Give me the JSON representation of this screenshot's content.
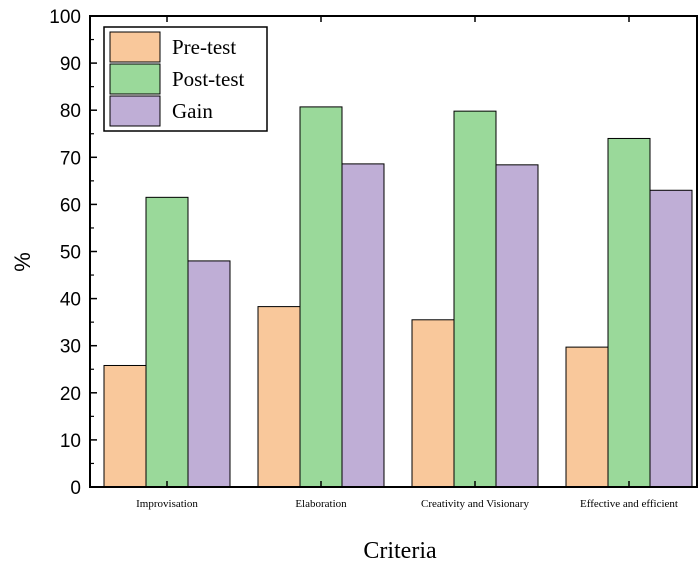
{
  "chart_data": {
    "type": "bar",
    "categories": [
      "Improvisation",
      "Elaboration",
      "Creativity and Visionary",
      "Effective and efficient"
    ],
    "series": [
      {
        "name": "Pre-test",
        "values": [
          25.8,
          38.3,
          35.5,
          29.7
        ],
        "color": "#f9c89b"
      },
      {
        "name": "Post-test",
        "values": [
          61.5,
          80.7,
          79.8,
          74.0
        ],
        "color": "#9ad99a"
      },
      {
        "name": "Gain",
        "values": [
          48.0,
          68.6,
          68.4,
          63.0
        ],
        "color": "#bfaed6"
      }
    ],
    "title": "",
    "xlabel": "Criteria",
    "ylabel": "%",
    "ylim": [
      0,
      100
    ],
    "yticks": [
      0,
      10,
      20,
      30,
      40,
      50,
      60,
      70,
      80,
      90,
      100
    ],
    "grid": false,
    "legend_position": "top-left"
  }
}
